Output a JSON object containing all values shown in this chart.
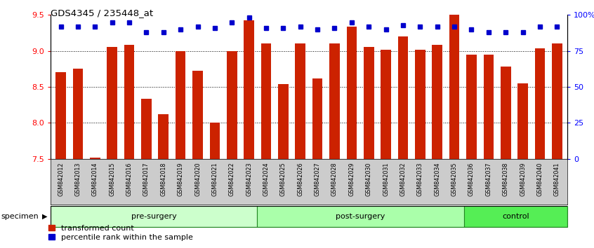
{
  "title": "GDS4345 / 235448_at",
  "samples": [
    "GSM842012",
    "GSM842013",
    "GSM842014",
    "GSM842015",
    "GSM842016",
    "GSM842017",
    "GSM842018",
    "GSM842019",
    "GSM842020",
    "GSM842021",
    "GSM842022",
    "GSM842023",
    "GSM842024",
    "GSM842025",
    "GSM842026",
    "GSM842027",
    "GSM842028",
    "GSM842029",
    "GSM842030",
    "GSM842031",
    "GSM842032",
    "GSM842033",
    "GSM842034",
    "GSM842035",
    "GSM842036",
    "GSM842037",
    "GSM842038",
    "GSM842039",
    "GSM842040",
    "GSM842041"
  ],
  "red_values": [
    8.7,
    8.75,
    7.52,
    9.05,
    9.08,
    8.33,
    8.12,
    9.0,
    8.72,
    8.0,
    9.0,
    9.42,
    9.1,
    8.54,
    9.1,
    8.62,
    9.1,
    9.34,
    9.05,
    9.02,
    9.2,
    9.02,
    9.08,
    9.5,
    8.95,
    8.95,
    8.78,
    8.55,
    9.03,
    9.1
  ],
  "blue_values": [
    92,
    92,
    92,
    95,
    95,
    88,
    88,
    90,
    92,
    91,
    95,
    98,
    91,
    91,
    92,
    90,
    91,
    95,
    92,
    90,
    93,
    92,
    92,
    92,
    90,
    88,
    88,
    88,
    92,
    92
  ],
  "groups": [
    {
      "label": "pre-surgery",
      "start": 0,
      "end": 11,
      "color": "#ccffcc"
    },
    {
      "label": "post-surgery",
      "start": 12,
      "end": 23,
      "color": "#aaffaa"
    },
    {
      "label": "control",
      "start": 24,
      "end": 29,
      "color": "#55ee55"
    }
  ],
  "ylim_left": [
    7.5,
    9.5
  ],
  "ylim_right": [
    0,
    100
  ],
  "yticks_left": [
    7.5,
    8.0,
    8.5,
    9.0,
    9.5
  ],
  "yticks_right": [
    0,
    25,
    50,
    75,
    100
  ],
  "ytick_labels_right": [
    "0",
    "25",
    "50",
    "75",
    "100%"
  ],
  "grid_values": [
    8.0,
    8.5,
    9.0
  ],
  "bar_color": "#cc2200",
  "dot_color": "#0000cc",
  "background_plot": "#ffffff",
  "tick_bg_color": "#cccccc",
  "specimen_label": "specimen",
  "legend1": "transformed count",
  "legend2": "percentile rank within the sample",
  "group_border_color": "#228822"
}
